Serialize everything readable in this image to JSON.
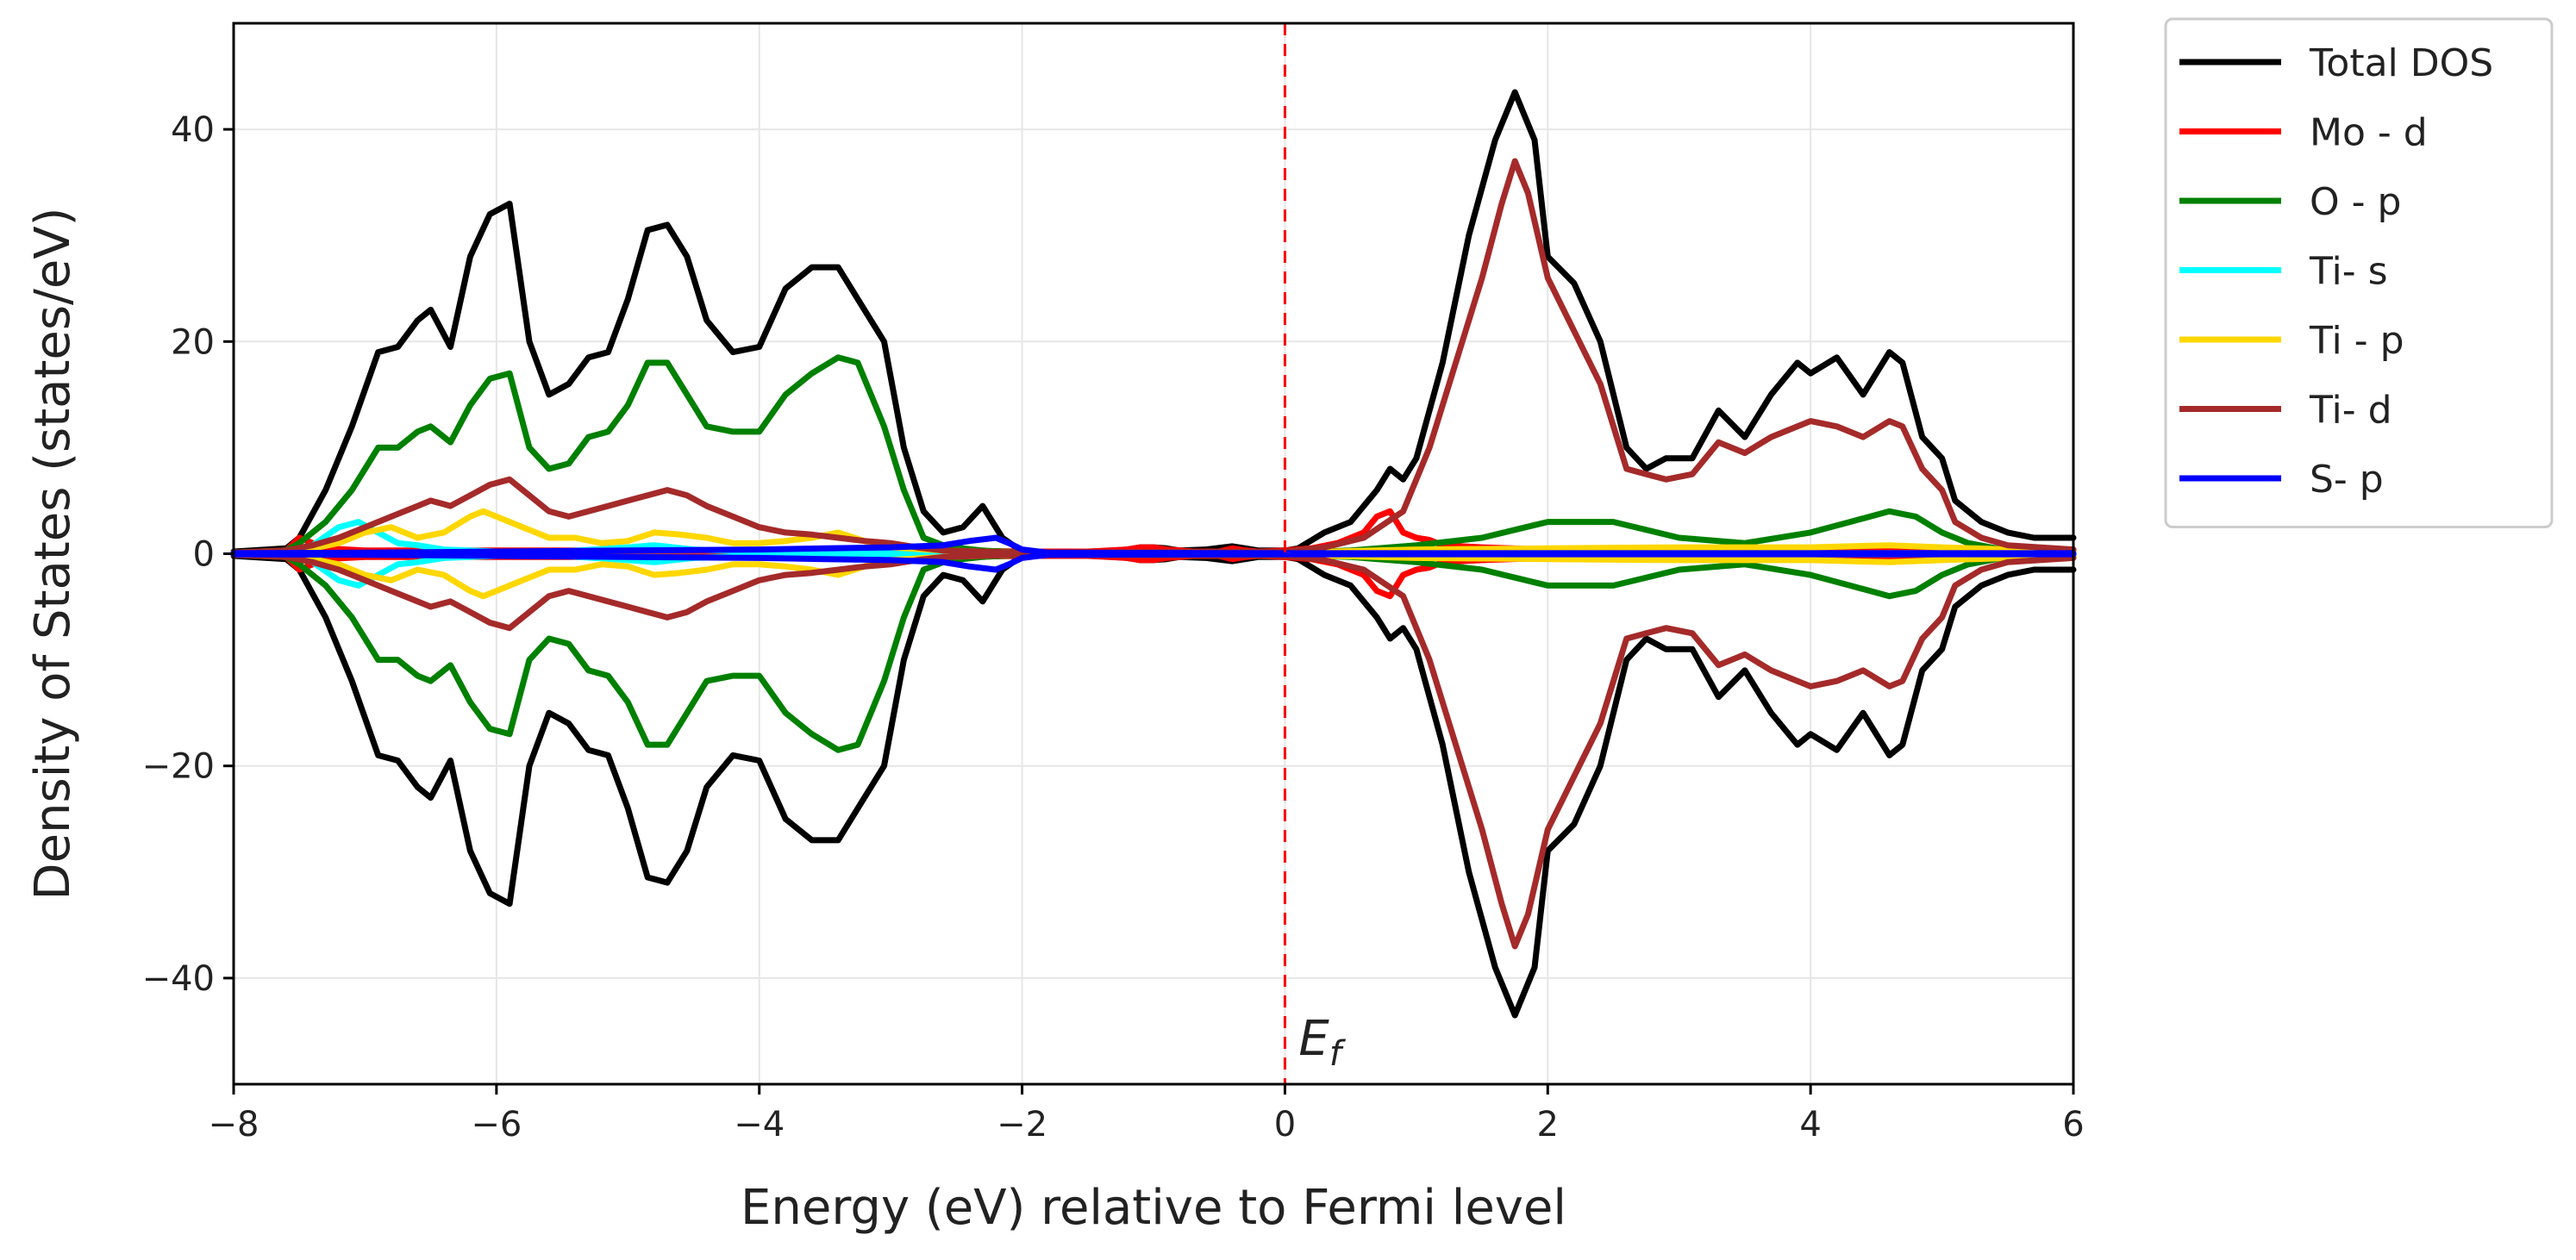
{
  "chart_data": {
    "type": "line",
    "title": "",
    "xlabel": "Energy (eV) relative to Fermi level",
    "ylabel": "Density of States (states/eV)",
    "xlim": [
      -8,
      6
    ],
    "ylim": [
      -50,
      50
    ],
    "xticks": [
      -8,
      -6,
      -4,
      -2,
      0,
      2,
      4,
      6
    ],
    "yticks": [
      -40,
      -20,
      0,
      20,
      40
    ],
    "xtick_labels": [
      "−8",
      "−6",
      "−4",
      "−2",
      "0",
      "2",
      "4",
      "6"
    ],
    "ytick_labels": [
      "−40",
      "−20",
      "0",
      "20",
      "40"
    ],
    "grid": true,
    "legend_position": "outside-top-right",
    "fermi_level": {
      "x": 0,
      "label_main": "E",
      "label_sub": "f",
      "color": "#ff0000",
      "style": "dashed"
    },
    "series": [
      {
        "name": "Total DOS",
        "color": "#000000",
        "x": [
          -8,
          -7.6,
          -7.5,
          -7.3,
          -7.1,
          -6.9,
          -6.75,
          -6.6,
          -6.5,
          -6.35,
          -6.2,
          -6.05,
          -5.9,
          -5.75,
          -5.6,
          -5.45,
          -5.3,
          -5.15,
          -5.0,
          -4.85,
          -4.7,
          -4.55,
          -4.4,
          -4.2,
          -4.0,
          -3.8,
          -3.6,
          -3.4,
          -3.25,
          -3.05,
          -2.9,
          -2.75,
          -2.6,
          -2.45,
          -2.3,
          -2.15,
          -2.0,
          -1.4,
          -1.2,
          -1.1,
          -1.0,
          -0.9,
          -0.8,
          -0.6,
          -0.4,
          -0.3,
          -0.2,
          0,
          0.1,
          0.3,
          0.5,
          0.7,
          0.8,
          0.9,
          1.0,
          1.2,
          1.4,
          1.6,
          1.75,
          1.9,
          2.0,
          2.2,
          2.4,
          2.6,
          2.75,
          2.9,
          3.1,
          3.3,
          3.5,
          3.7,
          3.9,
          4.0,
          4.2,
          4.4,
          4.6,
          4.7,
          4.85,
          5.0,
          5.1,
          5.3,
          5.5,
          5.7,
          6.0
        ],
        "y": [
          0.2,
          0.5,
          1.5,
          6,
          12,
          19,
          19.5,
          22,
          23,
          19.5,
          28,
          32,
          33,
          20,
          15,
          16,
          18.5,
          19,
          24,
          30.5,
          31,
          28,
          22,
          19,
          19.5,
          25,
          27,
          27,
          24,
          20,
          10,
          4,
          2,
          2.5,
          4.5,
          1.5,
          0.2,
          0.2,
          0.4,
          0.6,
          0.6,
          0.5,
          0.3,
          0.4,
          0.7,
          0.5,
          0.3,
          0.3,
          0.5,
          2,
          3,
          6,
          8,
          7,
          9,
          18,
          30,
          39,
          43.5,
          39,
          28,
          25.5,
          20,
          10,
          8,
          9,
          9,
          13.5,
          11,
          15,
          18,
          17,
          18.5,
          15,
          19,
          18,
          11,
          9,
          5,
          3,
          2,
          1.5,
          1.5
        ]
      },
      {
        "name": "Mo - d",
        "color": "#ff0000",
        "x": [
          -8,
          -7.6,
          -7.5,
          -7.3,
          -7.0,
          -6.5,
          -6.0,
          -5.5,
          -5.0,
          -4.5,
          -4.0,
          -3.5,
          -3.0,
          -2.5,
          -2.0,
          -1.5,
          -1.2,
          -1.1,
          -1.0,
          -0.9,
          -0.8,
          -0.7,
          -0.6,
          -0.5,
          -0.4,
          -0.3,
          -0.2,
          0,
          0.2,
          0.4,
          0.6,
          0.7,
          0.8,
          0.9,
          1.0,
          1.1,
          1.2,
          1.5,
          2.0,
          3.0,
          4.0,
          5.0,
          5.5,
          6.0
        ],
        "y": [
          0.1,
          0.3,
          1.5,
          0.5,
          0.3,
          0.3,
          0.3,
          0.3,
          0.3,
          0.3,
          0.3,
          0.3,
          0.3,
          0.3,
          0.2,
          0.2,
          0.4,
          0.6,
          0.6,
          0.4,
          0.3,
          0.2,
          0.2,
          0.2,
          0.5,
          0.3,
          0.2,
          0.3,
          0.5,
          1,
          2,
          3.5,
          4,
          2,
          1.5,
          1.3,
          0.8,
          0.6,
          0.4,
          0.4,
          0.4,
          0.4,
          0.3,
          0.3
        ]
      },
      {
        "name": "O - p",
        "color": "#008000",
        "x": [
          -8,
          -7.6,
          -7.5,
          -7.3,
          -7.1,
          -6.9,
          -6.75,
          -6.6,
          -6.5,
          -6.35,
          -6.2,
          -6.05,
          -5.9,
          -5.75,
          -5.6,
          -5.45,
          -5.3,
          -5.15,
          -5.0,
          -4.85,
          -4.7,
          -4.55,
          -4.4,
          -4.2,
          -4.0,
          -3.8,
          -3.6,
          -3.4,
          -3.25,
          -3.05,
          -2.9,
          -2.75,
          -2.6,
          -2.45,
          -2.3,
          -2.15,
          -2.0,
          0,
          0.5,
          1.0,
          1.5,
          2.0,
          2.5,
          3.0,
          3.5,
          4.0,
          4.3,
          4.6,
          4.8,
          5.0,
          5.2,
          5.5,
          6.0
        ],
        "y": [
          0.1,
          0.3,
          1,
          3,
          6,
          10,
          10,
          11.5,
          12,
          10.5,
          14,
          16.5,
          17,
          10,
          8,
          8.5,
          11,
          11.5,
          14,
          18,
          18,
          15,
          12,
          11.5,
          11.5,
          15,
          17,
          18.5,
          18,
          12,
          6,
          1.5,
          0.8,
          0.5,
          0.3,
          0.2,
          0.1,
          0.1,
          0.3,
          0.8,
          1.5,
          3,
          3,
          1.5,
          1,
          2,
          3,
          4,
          3.5,
          2,
          1,
          0.3,
          0.2
        ]
      },
      {
        "name": "Ti- s",
        "color": "#00ffff",
        "x": [
          -8,
          -7.6,
          -7.4,
          -7.2,
          -7.05,
          -6.9,
          -6.75,
          -6.6,
          -6.4,
          -6.0,
          -5.5,
          -5.0,
          -4.8,
          -4.5,
          -4.0,
          -3.5,
          -3.0,
          -2.5,
          -2.0,
          0,
          6.0
        ],
        "y": [
          0.1,
          0.2,
          0.8,
          2.5,
          3,
          2,
          1,
          0.8,
          0.4,
          0.2,
          0.2,
          0.6,
          0.8,
          0.4,
          0.2,
          0.2,
          0.1,
          0.1,
          0.05,
          0.05,
          0.05
        ]
      },
      {
        "name": "Ti - p",
        "color": "#ffd700",
        "x": [
          -8,
          -7.6,
          -7.4,
          -7.2,
          -7.0,
          -6.8,
          -6.6,
          -6.4,
          -6.2,
          -6.1,
          -6.0,
          -5.8,
          -5.6,
          -5.4,
          -5.2,
          -5.0,
          -4.8,
          -4.6,
          -4.4,
          -4.2,
          -4.0,
          -3.8,
          -3.6,
          -3.4,
          -3.2,
          -3.0,
          -2.6,
          -2.0,
          0,
          1.0,
          2.0,
          3.0,
          4.0,
          4.6,
          5.0,
          6.0
        ],
        "y": [
          0.1,
          0.2,
          0.5,
          1,
          2,
          2.5,
          1.5,
          2,
          3.5,
          4,
          3.5,
          2.5,
          1.5,
          1.5,
          1,
          1.2,
          2,
          1.8,
          1.5,
          1,
          1,
          1.2,
          1.5,
          2,
          1.2,
          0.6,
          0.3,
          0.1,
          0.1,
          0.4,
          0.5,
          0.6,
          0.6,
          0.8,
          0.6,
          0.2
        ]
      },
      {
        "name": "Ti- d",
        "color": "#a52a2a",
        "x": [
          -8,
          -7.6,
          -7.4,
          -7.2,
          -7.0,
          -6.8,
          -6.6,
          -6.5,
          -6.35,
          -6.2,
          -6.05,
          -5.9,
          -5.75,
          -5.6,
          -5.45,
          -5.3,
          -5.15,
          -5.0,
          -4.85,
          -4.7,
          -4.55,
          -4.4,
          -4.2,
          -4.0,
          -3.8,
          -3.6,
          -3.4,
          -3.2,
          -3.0,
          -2.8,
          -2.6,
          -2.0,
          0,
          0.3,
          0.6,
          0.9,
          1.1,
          1.3,
          1.5,
          1.65,
          1.75,
          1.85,
          2.0,
          2.2,
          2.4,
          2.6,
          2.75,
          2.9,
          3.1,
          3.3,
          3.5,
          3.7,
          3.9,
          4.0,
          4.2,
          4.4,
          4.6,
          4.7,
          4.85,
          5.0,
          5.1,
          5.3,
          5.5,
          6.0
        ],
        "y": [
          0.1,
          0.3,
          0.8,
          1.5,
          2.5,
          3.5,
          4.5,
          5,
          4.5,
          5.5,
          6.5,
          7,
          5.5,
          4,
          3.5,
          4,
          4.5,
          5,
          5.5,
          6,
          5.5,
          4.5,
          3.5,
          2.5,
          2,
          1.8,
          1.5,
          1.2,
          1,
          0.6,
          0.3,
          0.1,
          0.2,
          0.6,
          1.5,
          4,
          10,
          18,
          26,
          33,
          37,
          34,
          26,
          21,
          16,
          8,
          7.5,
          7,
          7.5,
          10.5,
          9.5,
          11,
          12,
          12.5,
          12,
          11,
          12.5,
          12,
          8,
          6,
          3,
          1.5,
          0.8,
          0.4
        ]
      },
      {
        "name": "S- p",
        "color": "#0000ff",
        "x": [
          -8,
          -7.0,
          -6.0,
          -5.0,
          -4.0,
          -3.5,
          -3.0,
          -2.6,
          -2.4,
          -2.2,
          -2.1,
          -2.0,
          -1.8,
          0,
          6.0
        ],
        "y": [
          0.05,
          0.1,
          0.2,
          0.3,
          0.4,
          0.5,
          0.6,
          0.8,
          1.2,
          1.5,
          1.0,
          0.4,
          0.1,
          0.05,
          0.05
        ]
      }
    ]
  }
}
